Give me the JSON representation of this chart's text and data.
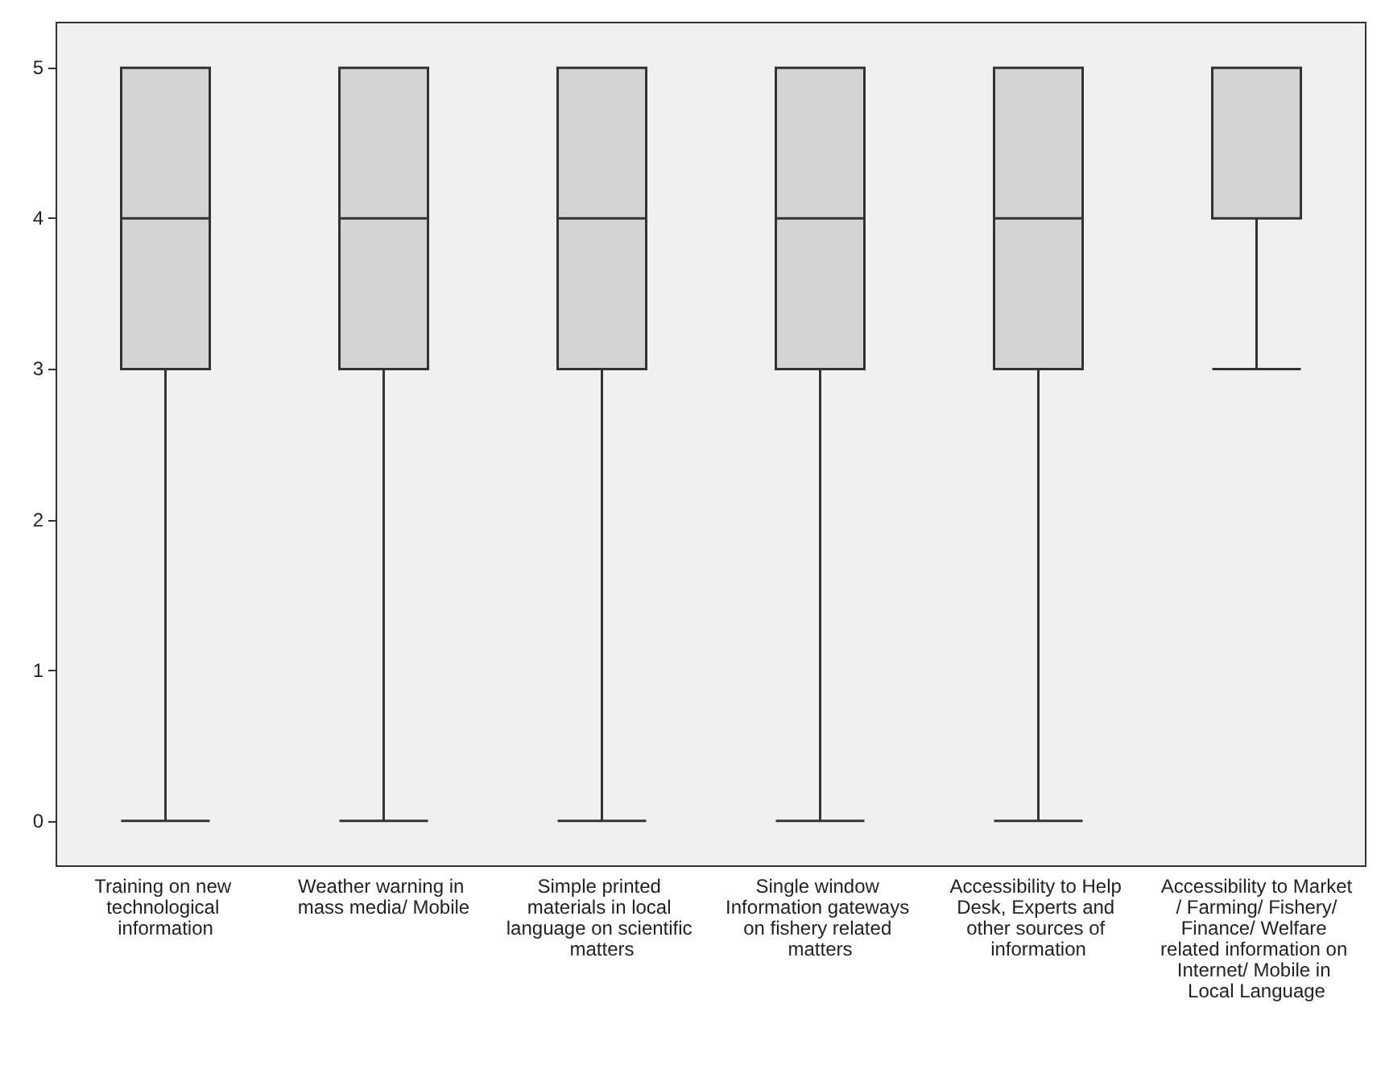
{
  "chart_data": {
    "type": "box",
    "categories": [
      "Training on new technological information",
      "Weather warning in mass media/ Mobile",
      "Simple printed materials in local language on scientific matters",
      "Single window Information gateways on fishery related matters",
      "Accessibility to Help Desk, Experts and other sources of information",
      "Accessibility to Market / Farming/ Fishery/ Finance/ Welfare related information on Internet/ Mobile in Local Language"
    ],
    "color": "#d3d3d3",
    "boxes": [
      {
        "low": 0,
        "q1": 3,
        "median": 4,
        "q3": 5,
        "high": 5
      },
      {
        "low": 0,
        "q1": 3,
        "median": 4,
        "q3": 5,
        "high": 5
      },
      {
        "low": 0,
        "q1": 3,
        "median": 4,
        "q3": 5,
        "high": 5
      },
      {
        "low": 0,
        "q1": 3,
        "median": 4,
        "q3": 5,
        "high": 5
      },
      {
        "low": 0,
        "q1": 3,
        "median": 4,
        "q3": 5,
        "high": 5
      },
      {
        "low": 3,
        "q1": 4,
        "median": 4,
        "q3": 5,
        "high": 5
      }
    ],
    "ylim": [
      -0.3,
      5.3
    ],
    "yticks": [
      0,
      1,
      2,
      3,
      4,
      5
    ]
  }
}
